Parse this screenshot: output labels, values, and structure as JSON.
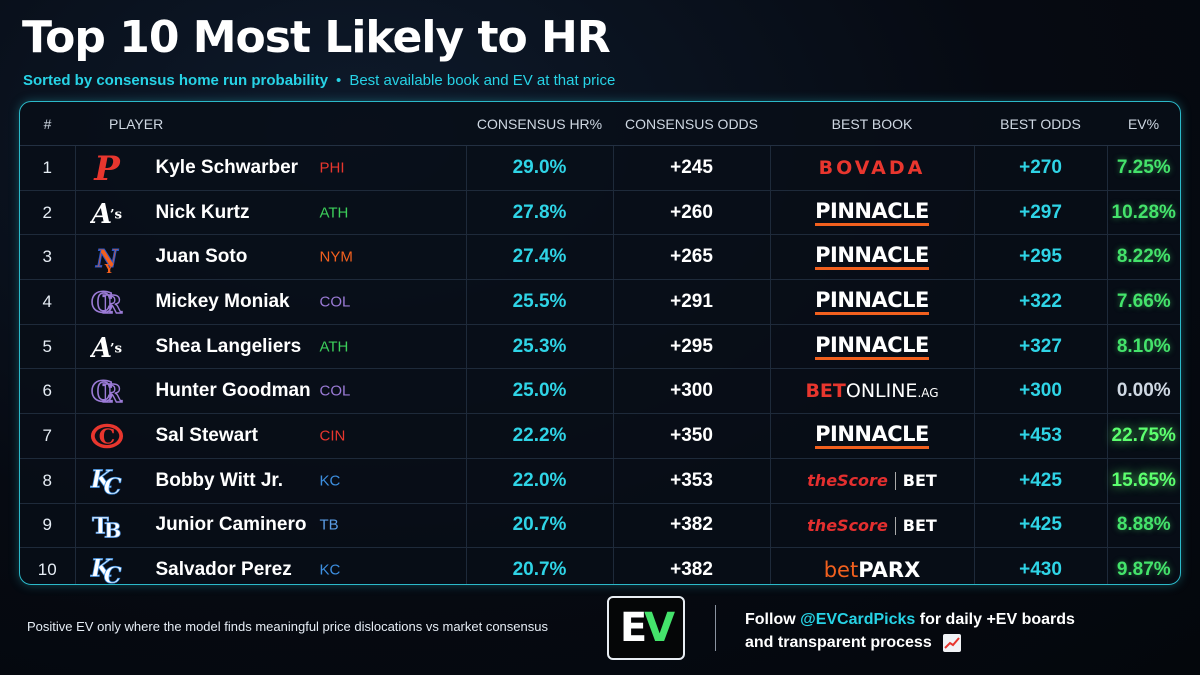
{
  "title": "Top 10 Most Likely to HR",
  "subtitle": {
    "main": "Sorted by consensus home run probability",
    "separator": "•",
    "secondary": "Best available book and EV at that price"
  },
  "columns": {
    "rank": "#",
    "player": "PLAYER",
    "hr": "CONSENSUS HR%",
    "odds": "CONSENSUS ODDS",
    "book": "BEST BOOK",
    "best_odds": "BEST ODDS",
    "ev": "EV%"
  },
  "rows": [
    {
      "rank": "1",
      "player": "Kyle Schwarber",
      "team": "PHI",
      "team_color": "#e8362e",
      "logo": "phillies-logo",
      "hr": "29.0%",
      "odds": "+245",
      "book": "bovada",
      "book_text": "BOVADA",
      "best_odds": "+270",
      "ev": "7.25%"
    },
    {
      "rank": "2",
      "player": "Nick Kurtz",
      "team": "ATH",
      "team_color": "#3ccf5a",
      "logo": "athletics-logo",
      "hr": "27.8%",
      "odds": "+260",
      "book": "pinnacle",
      "book_text": "PINNACLE",
      "best_odds": "+297",
      "ev": "10.28%"
    },
    {
      "rank": "3",
      "player": "Juan Soto",
      "team": "NYM",
      "team_color": "#f2601e",
      "logo": "mets-logo",
      "hr": "27.4%",
      "odds": "+265",
      "book": "pinnacle",
      "book_text": "PINNACLE",
      "best_odds": "+295",
      "ev": "8.22%"
    },
    {
      "rank": "4",
      "player": "Mickey Moniak",
      "team": "COL",
      "team_color": "#9b7bd6",
      "logo": "rockies-logo",
      "hr": "25.5%",
      "odds": "+291",
      "book": "pinnacle",
      "book_text": "PINNACLE",
      "best_odds": "+322",
      "ev": "7.66%"
    },
    {
      "rank": "5",
      "player": "Shea Langeliers",
      "team": "ATH",
      "team_color": "#3ccf5a",
      "logo": "athletics-logo",
      "hr": "25.3%",
      "odds": "+295",
      "book": "pinnacle",
      "book_text": "PINNACLE",
      "best_odds": "+327",
      "ev": "8.10%"
    },
    {
      "rank": "6",
      "player": "Hunter Goodman",
      "team": "COL",
      "team_color": "#9b7bd6",
      "logo": "rockies-logo",
      "hr": "25.0%",
      "odds": "+300",
      "book": "betonline",
      "book_text": [
        "BET",
        "ONLINE",
        ".AG"
      ],
      "best_odds": "+300",
      "ev": "0.00%"
    },
    {
      "rank": "7",
      "player": "Sal Stewart",
      "team": "CIN",
      "team_color": "#e8362e",
      "logo": "reds-logo",
      "hr": "22.2%",
      "odds": "+350",
      "book": "pinnacle",
      "book_text": "PINNACLE",
      "best_odds": "+453",
      "ev": "22.75%"
    },
    {
      "rank": "8",
      "player": "Bobby Witt Jr.",
      "team": "KC",
      "team_color": "#3d8fe0",
      "logo": "royals-logo",
      "hr": "22.0%",
      "odds": "+353",
      "book": "thescore",
      "book_text": [
        "theScore",
        "BET"
      ],
      "best_odds": "+425",
      "ev": "15.65%"
    },
    {
      "rank": "9",
      "player": "Junior Caminero",
      "team": "TB",
      "team_color": "#5b9de6",
      "logo": "rays-logo",
      "hr": "20.7%",
      "odds": "+382",
      "book": "thescore",
      "book_text": [
        "theScore",
        "BET"
      ],
      "best_odds": "+425",
      "ev": "8.88%"
    },
    {
      "rank": "10",
      "player": "Salvador Perez",
      "team": "KC",
      "team_color": "#3d8fe0",
      "logo": "royals-logo",
      "hr": "20.7%",
      "odds": "+382",
      "book": "betparx",
      "book_text": [
        "bet",
        "PARX"
      ],
      "best_odds": "+430",
      "ev": "9.87%"
    }
  ],
  "footer": {
    "note": "Positive EV only where the model finds meaningful price dislocations vs market consensus",
    "logo_e": "E",
    "logo_v": "V",
    "follow_prefix": "Follow",
    "handle": "@EVCardPicks",
    "follow_suffix": "for daily +EV boards",
    "line2": "and transparent process"
  },
  "colors": {
    "accent": "#27d3e6",
    "ev_green": "#44e36b",
    "border": "#2bb9c9",
    "background": "#060a12"
  }
}
